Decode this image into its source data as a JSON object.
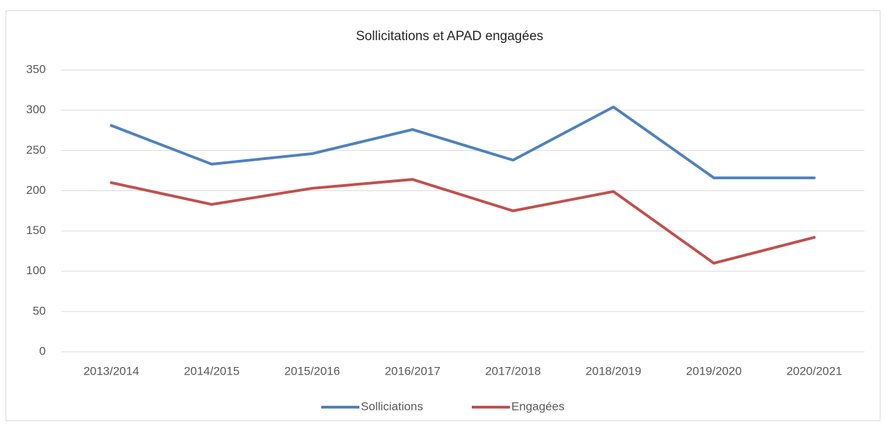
{
  "chart_data": {
    "type": "line",
    "title": "Sollicitations et APAD engagées",
    "categories": [
      "2013/2014",
      "2014/2015",
      "2015/2016",
      "2016/2017",
      "2017/2018",
      "2018/2019",
      "2019/2020",
      "2020/2021"
    ],
    "series": [
      {
        "name": "Solliciations",
        "color": "#4f81bd",
        "values": [
          281,
          233,
          246,
          276,
          238,
          304,
          216,
          216
        ]
      },
      {
        "name": "Engagées",
        "color": "#c0504d",
        "values": [
          210,
          183,
          203,
          214,
          175,
          199,
          110,
          142
        ]
      }
    ],
    "ylim": [
      0,
      350
    ],
    "yticks": [
      0,
      50,
      100,
      150,
      200,
      250,
      300,
      350
    ],
    "grid": true,
    "legend": "bottom"
  }
}
